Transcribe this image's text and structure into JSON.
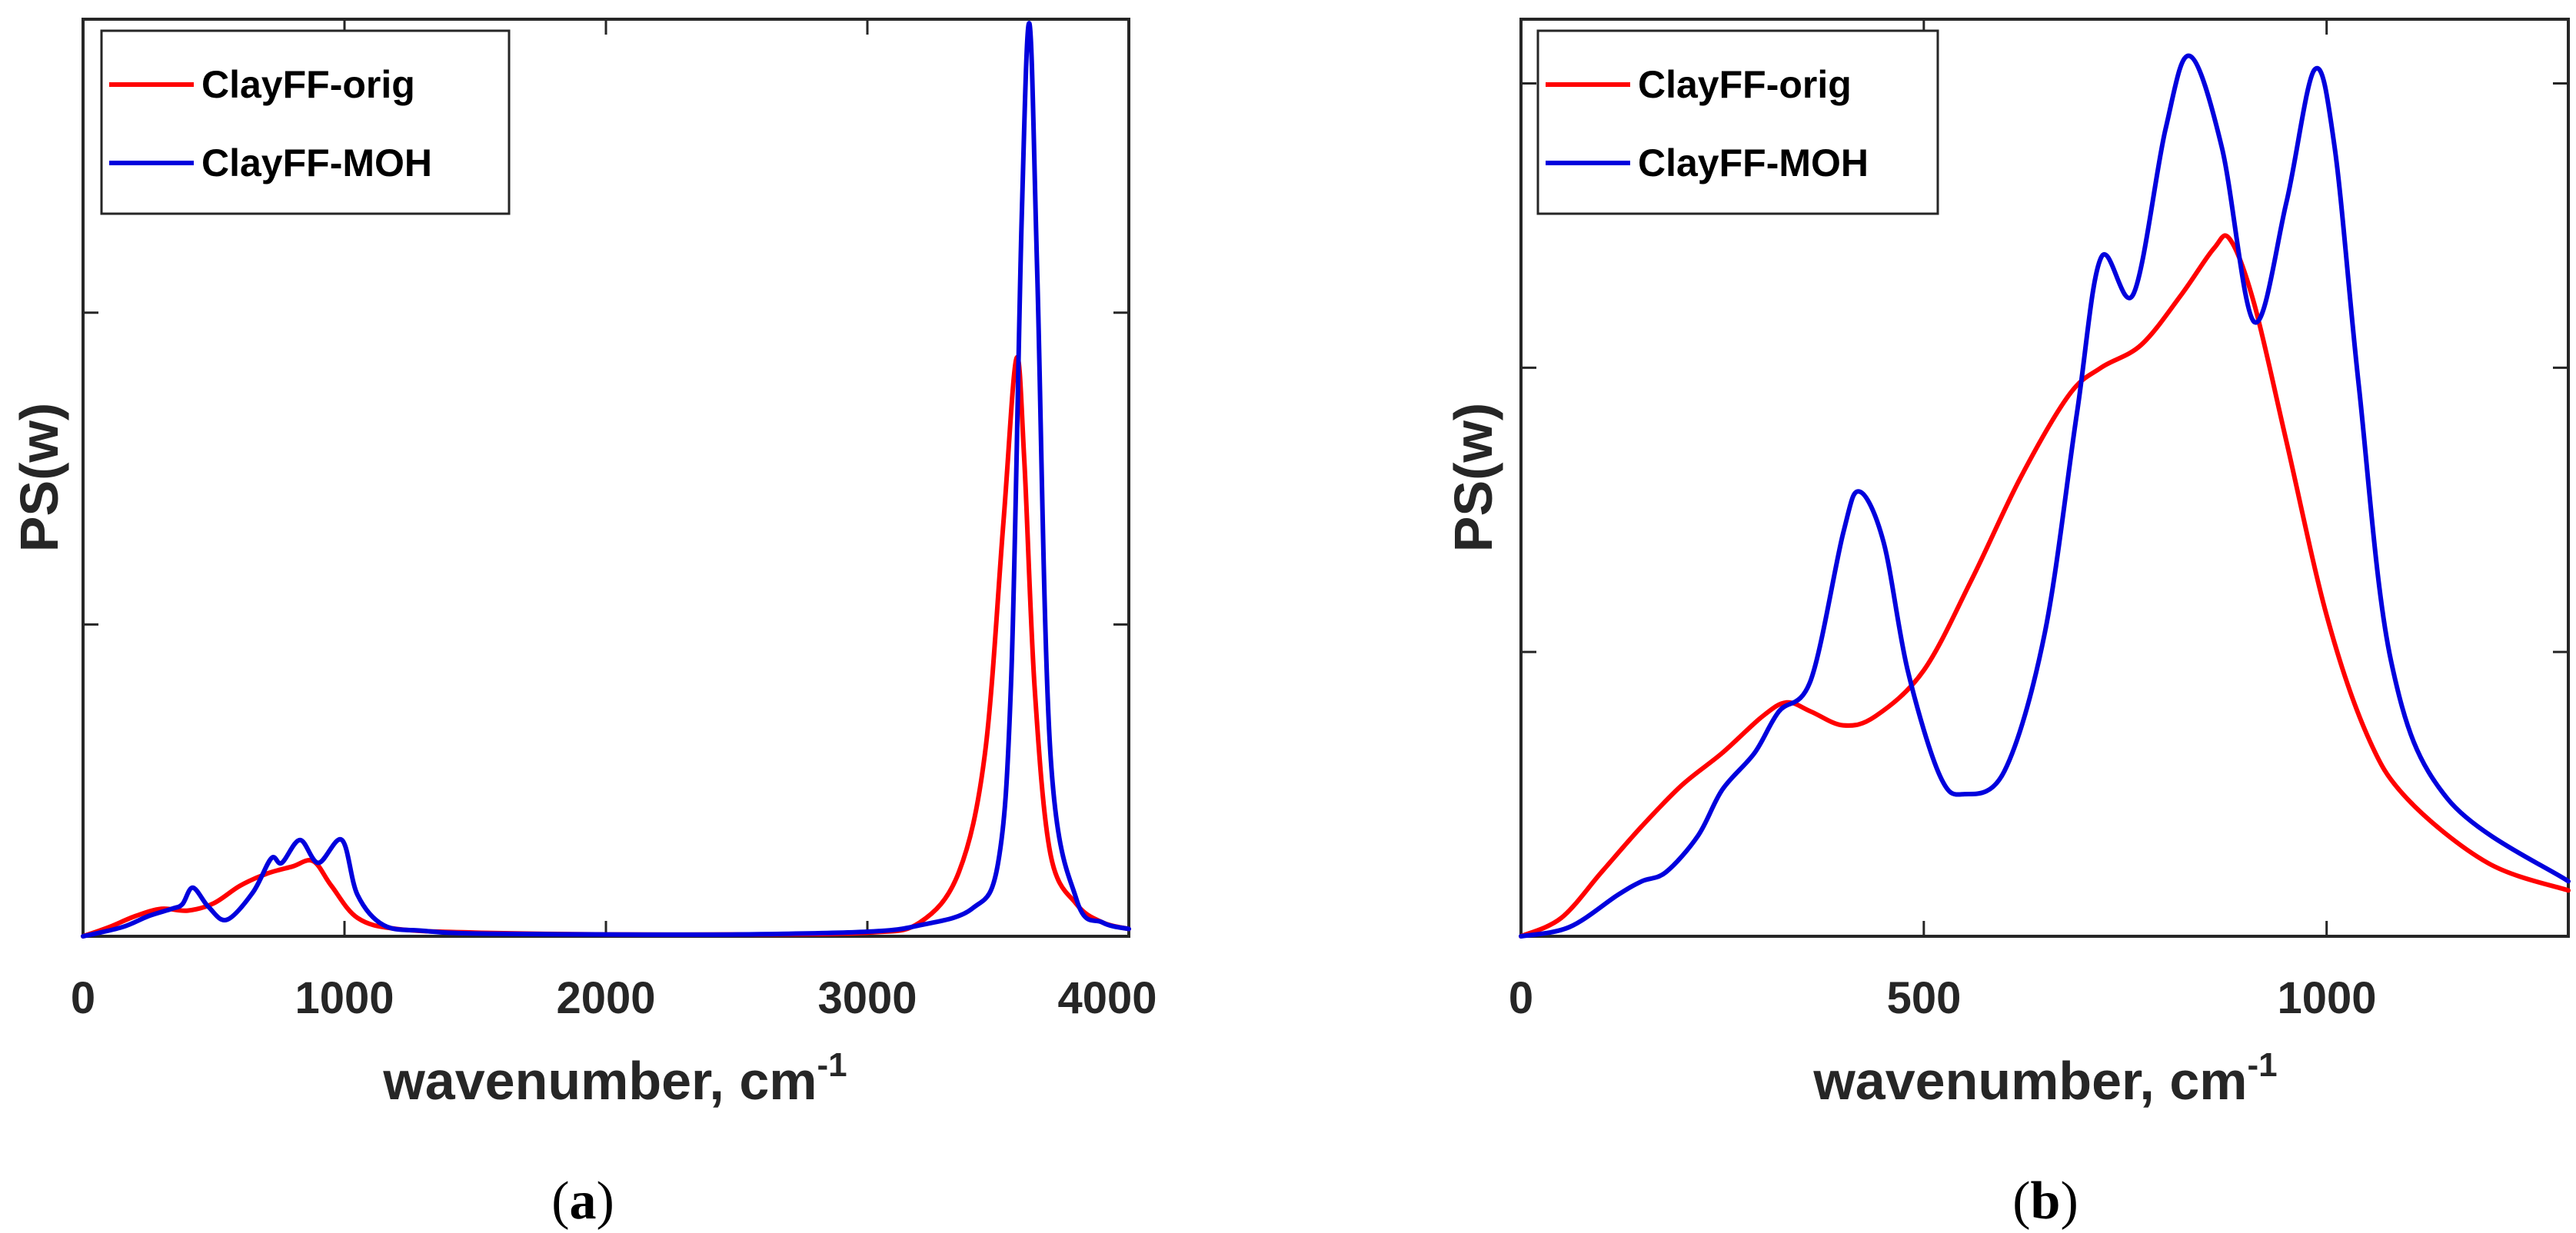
{
  "figure": {
    "panel_a_label": "(a)",
    "panel_b_label": "(b)",
    "paren_open": "(",
    "paren_close": ")",
    "panel_a_letter": "a",
    "panel_b_letter": "b"
  },
  "colors": {
    "orig": "#ff0000",
    "moh": "#0000dd",
    "axis": "#262626"
  },
  "chart_data": [
    {
      "type": "line",
      "id": "a",
      "xlabel": "wavenumber, cm",
      "xlabel_sup": "-1",
      "ylabel": "PS(w)",
      "xlim": [
        0,
        4000
      ],
      "ylim": [
        0,
        1
      ],
      "xticks": [
        0,
        1000,
        2000,
        3000,
        4000
      ],
      "xtick_labels": [
        "0",
        "1000",
        "2000",
        "3000",
        "4000"
      ],
      "yticks": [
        0.34,
        0.68
      ],
      "legend": {
        "location": "top-left",
        "entries": [
          "ClayFF-orig",
          "ClayFF-MOH"
        ]
      },
      "series": [
        {
          "name": "ClayFF-orig",
          "color_key": "orig",
          "x": [
            0,
            100,
            200,
            300,
            400,
            500,
            600,
            700,
            800,
            880,
            950,
            1050,
            1200,
            1500,
            2000,
            2500,
            3000,
            3200,
            3350,
            3450,
            3520,
            3570,
            3600,
            3640,
            3700,
            3800,
            3900,
            4000
          ],
          "y": [
            0,
            0.01,
            0.022,
            0.03,
            0.028,
            0.036,
            0.055,
            0.068,
            0.076,
            0.082,
            0.055,
            0.02,
            0.008,
            0.004,
            0.002,
            0.002,
            0.004,
            0.015,
            0.07,
            0.2,
            0.45,
            0.63,
            0.52,
            0.27,
            0.09,
            0.035,
            0.015,
            0.008
          ]
        },
        {
          "name": "ClayFF-MOH",
          "color_key": "moh",
          "x": [
            0,
            150,
            250,
            340,
            380,
            420,
            480,
            550,
            650,
            720,
            760,
            830,
            900,
            990,
            1050,
            1150,
            1300,
            1500,
            2000,
            2500,
            3000,
            3200,
            3400,
            3500,
            3550,
            3590,
            3620,
            3650,
            3700,
            3800,
            3900,
            4000
          ],
          "y": [
            0,
            0.01,
            0.022,
            0.03,
            0.035,
            0.053,
            0.032,
            0.018,
            0.048,
            0.085,
            0.08,
            0.105,
            0.08,
            0.105,
            0.045,
            0.012,
            0.006,
            0.003,
            0.002,
            0.002,
            0.005,
            0.012,
            0.03,
            0.08,
            0.28,
            0.78,
            0.995,
            0.72,
            0.2,
            0.04,
            0.015,
            0.008
          ]
        }
      ]
    },
    {
      "type": "line",
      "id": "b",
      "xlabel": "wavenumber, cm",
      "xlabel_sup": "-1",
      "ylabel": "PS(w)",
      "xlim": [
        0,
        1300
      ],
      "ylim": [
        0,
        1
      ],
      "xticks": [
        0,
        500,
        1000
      ],
      "xtick_labels": [
        "0",
        "500",
        "1000"
      ],
      "yticks": [
        0.31,
        0.62,
        0.93
      ],
      "legend": {
        "location": "top-left",
        "entries": [
          "ClayFF-orig",
          "ClayFF-MOH"
        ]
      },
      "series": [
        {
          "name": "ClayFF-orig",
          "color_key": "orig",
          "x": [
            0,
            50,
            100,
            150,
            200,
            250,
            300,
            330,
            360,
            400,
            440,
            500,
            560,
            620,
            680,
            720,
            770,
            820,
            860,
            880,
            910,
            950,
            1000,
            1050,
            1100,
            1200,
            1300
          ],
          "y": [
            0,
            0.02,
            0.07,
            0.12,
            0.165,
            0.2,
            0.24,
            0.255,
            0.245,
            0.23,
            0.24,
            0.29,
            0.39,
            0.5,
            0.59,
            0.62,
            0.645,
            0.7,
            0.75,
            0.76,
            0.69,
            0.54,
            0.35,
            0.22,
            0.15,
            0.08,
            0.05
          ]
        },
        {
          "name": "ClayFF-MOH",
          "color_key": "moh",
          "x": [
            0,
            60,
            120,
            150,
            180,
            220,
            250,
            290,
            320,
            360,
            400,
            420,
            450,
            480,
            520,
            550,
            600,
            650,
            690,
            720,
            760,
            800,
            830,
            870,
            910,
            950,
            985,
            1010,
            1040,
            1080,
            1150,
            1300
          ],
          "y": [
            0,
            0.01,
            0.045,
            0.06,
            0.07,
            0.11,
            0.16,
            0.2,
            0.245,
            0.28,
            0.44,
            0.485,
            0.43,
            0.29,
            0.175,
            0.155,
            0.18,
            0.33,
            0.57,
            0.74,
            0.7,
            0.88,
            0.96,
            0.86,
            0.67,
            0.8,
            0.945,
            0.86,
            0.6,
            0.3,
            0.15,
            0.06
          ]
        }
      ]
    }
  ]
}
